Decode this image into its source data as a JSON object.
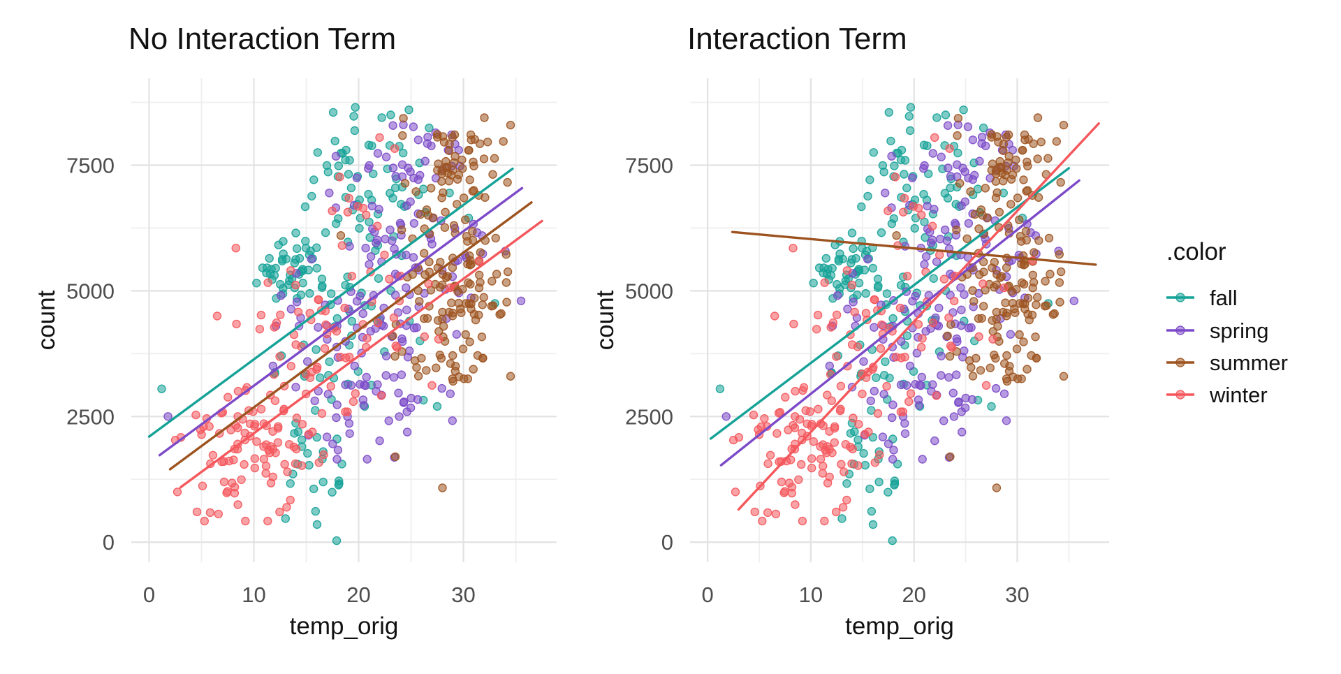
{
  "figure": {
    "background": "#ffffff"
  },
  "legend": {
    "title": ".color",
    "entries": [
      {
        "label": "fall",
        "color": "#15A297"
      },
      {
        "label": "spring",
        "color": "#7C4AC8"
      },
      {
        "label": "summer",
        "color": "#9D531F"
      },
      {
        "label": "winter",
        "color": "#F4575C"
      }
    ]
  },
  "chart_data": {
    "type": "scatter",
    "xlabel": "temp_orig",
    "ylabel": "count",
    "grid": "on",
    "legend_position": "right",
    "x_ticks": [
      0,
      10,
      20,
      30
    ],
    "x_minor_gridlines": [
      5,
      15,
      25,
      35
    ],
    "y_ticks": [
      0,
      2500,
      5000,
      7500
    ],
    "y_minor_gridlines": [
      1250,
      3750,
      6250,
      8750
    ],
    "x_domain": [
      -1.7,
      38.9
    ],
    "y_domain": [
      -400,
      9230
    ],
    "point_alpha": 0.55,
    "series": [
      {
        "name": "fall",
        "color": "#15A297"
      },
      {
        "name": "spring",
        "color": "#7C4AC8"
      },
      {
        "name": "summer",
        "color": "#9D531F"
      },
      {
        "name": "winter",
        "color": "#F4575C"
      }
    ],
    "panels": [
      {
        "title": "No Interaction Term",
        "regression_lines": [
          {
            "series": "fall",
            "x1": 0.0,
            "y1": 2100,
            "x2": 34.7,
            "y2": 7430
          },
          {
            "series": "spring",
            "x1": 1.0,
            "y1": 1730,
            "x2": 35.6,
            "y2": 7045
          },
          {
            "series": "summer",
            "x1": 2.0,
            "y1": 1450,
            "x2": 36.5,
            "y2": 6760
          },
          {
            "series": "winter",
            "x1": 3.0,
            "y1": 1090,
            "x2": 37.5,
            "y2": 6390
          }
        ]
      },
      {
        "title": "Interaction Term",
        "regression_lines": [
          {
            "series": "fall",
            "x1": 0.3,
            "y1": 2060,
            "x2": 35.0,
            "y2": 7440
          },
          {
            "series": "spring",
            "x1": 1.3,
            "y1": 1530,
            "x2": 36.0,
            "y2": 7195
          },
          {
            "series": "summer",
            "x1": 2.4,
            "y1": 6170,
            "x2": 37.6,
            "y2": 5520
          },
          {
            "series": "winter",
            "x1": 3.0,
            "y1": 650,
            "x2": 37.9,
            "y2": 8330
          }
        ]
      }
    ],
    "scatter_seed": 42,
    "scatter_clusters": [
      {
        "season": "fall",
        "n": 45,
        "t_mean": 13.2,
        "t_sd": 1.6,
        "t_range": [
          9.5,
          16.5
        ],
        "c_mean": 5520,
        "c_sd": 320,
        "c_range": [
          4850,
          6150
        ]
      },
      {
        "season": "fall",
        "n": 62,
        "t_mean": 20.5,
        "t_sd": 3.4,
        "t_range": [
          14,
          30
        ],
        "c_mean": 7050,
        "c_sd": 750,
        "c_range": [
          5700,
          8650
        ]
      },
      {
        "season": "fall",
        "n": 42,
        "t_mean": 19.0,
        "t_sd": 3.6,
        "t_range": [
          12,
          27.5
        ],
        "c_mean": 4300,
        "c_sd": 850,
        "c_range": [
          2700,
          5800
        ]
      },
      {
        "season": "fall",
        "n": 26,
        "t_mean": 16.5,
        "t_sd": 2.6,
        "t_range": [
          11,
          23
        ],
        "c_mean": 1900,
        "c_sd": 850,
        "c_range": [
          350,
          3300
        ]
      },
      {
        "season": "spring",
        "n": 100,
        "t_mean": 24.0,
        "t_sd": 4.0,
        "t_range": [
          15.5,
          34
        ],
        "c_mean": 5700,
        "c_sd": 1000,
        "c_range": [
          3500,
          7800
        ]
      },
      {
        "season": "spring",
        "n": 55,
        "t_mean": 21.0,
        "t_sd": 3.5,
        "t_range": [
          14,
          30
        ],
        "c_mean": 2900,
        "c_sd": 650,
        "c_range": [
          1650,
          4300
        ]
      },
      {
        "season": "spring",
        "n": 12,
        "t_mean": 14.0,
        "t_sd": 2.0,
        "t_range": [
          9,
          17
        ],
        "c_mean": 4500,
        "c_sd": 700,
        "c_range": [
          3200,
          5800
        ]
      },
      {
        "season": "spring",
        "n": 15,
        "t_mean": 25.0,
        "t_sd": 2.3,
        "t_range": [
          20,
          30
        ],
        "c_mean": 7900,
        "c_sd": 330,
        "c_range": [
          7350,
          8600
        ]
      },
      {
        "season": "summer",
        "n": 118,
        "t_mean": 29.0,
        "t_sd": 2.7,
        "t_range": [
          21.5,
          36.8
        ],
        "c_mean": 5200,
        "c_sd": 950,
        "c_range": [
          3250,
          7400
        ]
      },
      {
        "season": "summer",
        "n": 45,
        "t_mean": 29.5,
        "t_sd": 2.1,
        "t_range": [
          24,
          34.5
        ],
        "c_mean": 7600,
        "c_sd": 420,
        "c_range": [
          6850,
          8714
        ]
      },
      {
        "season": "summer",
        "n": 14,
        "t_mean": 27.0,
        "t_sd": 3.0,
        "t_range": [
          20,
          33
        ],
        "c_mean": 3600,
        "c_sd": 280,
        "c_range": [
          3200,
          4200
        ]
      },
      {
        "season": "winter",
        "n": 95,
        "t_mean": 9.5,
        "t_sd": 3.2,
        "t_range": [
          2.5,
          17
        ],
        "c_mean": 1900,
        "c_sd": 720,
        "c_range": [
          420,
          3600
        ]
      },
      {
        "season": "winter",
        "n": 58,
        "t_mean": 16.0,
        "t_sd": 4.3,
        "t_range": [
          6.5,
          27
        ],
        "c_mean": 3900,
        "c_sd": 900,
        "c_range": [
          2300,
          6200
        ]
      },
      {
        "season": "winter",
        "n": 10,
        "t_mean": 21.0,
        "t_sd": 2.5,
        "t_range": [
          16,
          26
        ],
        "c_mean": 6800,
        "c_sd": 550,
        "c_range": [
          5900,
          8000
        ]
      },
      {
        "season": "winter",
        "n": 8,
        "t_mean": 26.0,
        "t_sd": 2.5,
        "t_range": [
          21,
          31
        ],
        "c_mean": 4800,
        "c_sd": 800,
        "c_range": [
          3400,
          6300
        ]
      }
    ],
    "scatter_outliers": [
      {
        "season": "fall",
        "t": 17.9,
        "c": 30
      },
      {
        "season": "fall",
        "t": 24.8,
        "c": 8600
      },
      {
        "season": "fall",
        "t": 30.5,
        "c": 6450
      },
      {
        "season": "fall",
        "t": 33.0,
        "c": 4750
      },
      {
        "season": "fall",
        "t": 1.2,
        "c": 3050
      },
      {
        "season": "spring",
        "t": 1.8,
        "c": 2500
      },
      {
        "season": "spring",
        "t": 35.5,
        "c": 4800
      },
      {
        "season": "summer",
        "t": 28.0,
        "c": 1080
      },
      {
        "season": "summer",
        "t": 23.5,
        "c": 1700
      },
      {
        "season": "summer",
        "t": 34.5,
        "c": 3300
      },
      {
        "season": "summer",
        "t": 18.3,
        "c": 6100
      },
      {
        "season": "winter",
        "t": 2.7,
        "c": 1000
      },
      {
        "season": "winter",
        "t": 31.5,
        "c": 5600
      },
      {
        "season": "winter",
        "t": 22.0,
        "c": 8050
      }
    ]
  },
  "style": {
    "grid_major_color": "#E2E2E2",
    "grid_minor_color": "#EFEFEF",
    "tick_label_color": "#4d4d4d",
    "text_color": "#111111"
  }
}
